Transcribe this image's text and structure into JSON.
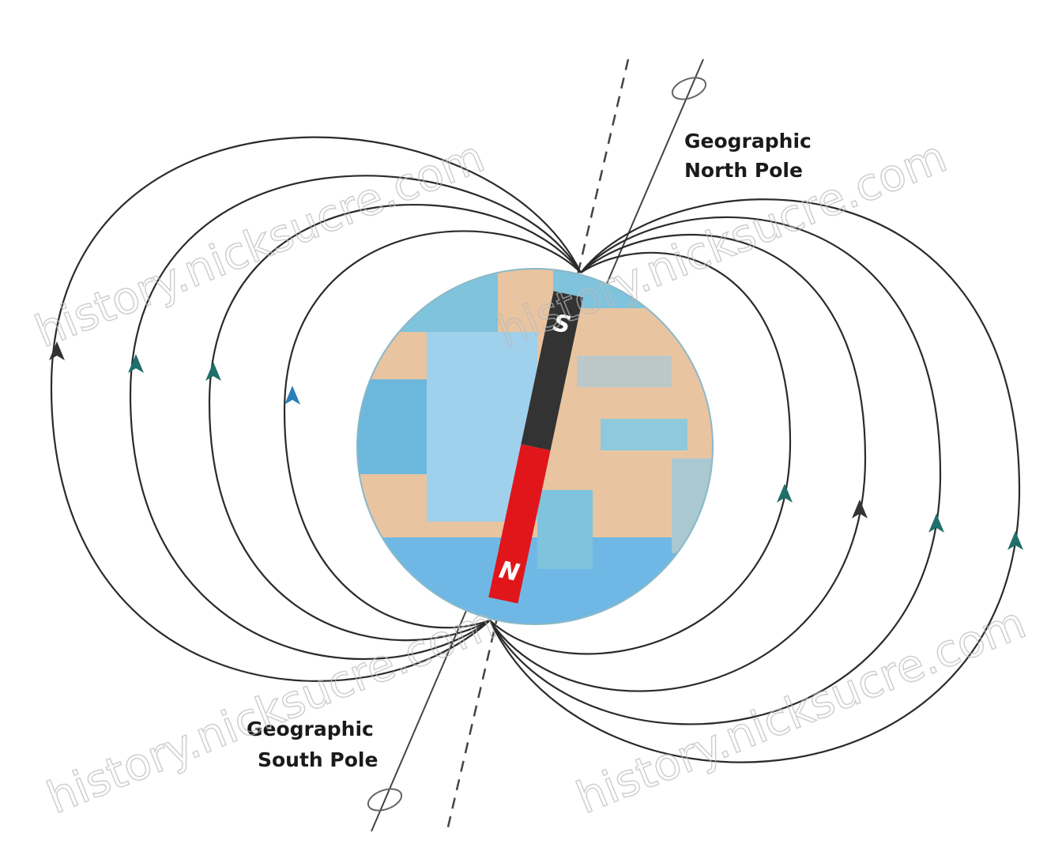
{
  "labels": {
    "north_pole": {
      "lines": [
        "Geographic",
        "North Pole"
      ]
    },
    "south_pole": {
      "lines": [
        "Geographic",
        "South Pole"
      ]
    }
  },
  "magnet": {
    "south": "S",
    "north": "N"
  },
  "watermarks": [
    "history.nicksucre.com",
    "history.nicksucre.com",
    "history.nicksucre.com"
  ]
}
